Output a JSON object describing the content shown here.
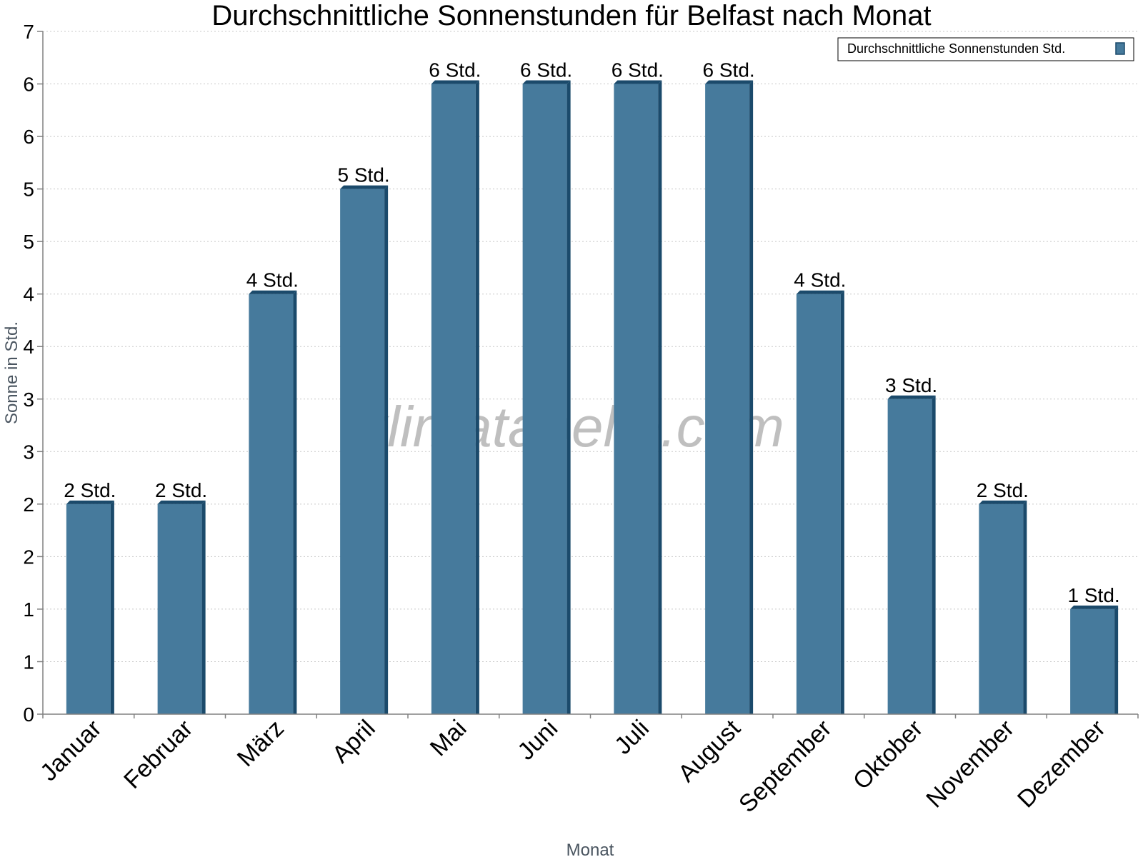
{
  "chart_data": {
    "type": "bar",
    "title": "Durchschnittliche Sonnenstunden für Belfast nach Monat",
    "xlabel": "Monat",
    "ylabel": "Sonne in Std.",
    "categories": [
      "Januar",
      "Februar",
      "März",
      "April",
      "Mai",
      "Juni",
      "Juli",
      "August",
      "September",
      "Oktober",
      "November",
      "Dezember"
    ],
    "series": [
      {
        "name": "Durchschnittliche Sonnenstunden Std.",
        "values": [
          2,
          2,
          4,
          5,
          6,
          6,
          6,
          6,
          4,
          3,
          2,
          1
        ],
        "data_labels": [
          "2 Std.",
          "2 Std.",
          "4 Std.",
          "5 Std.",
          "6 Std.",
          "6 Std.",
          "6 Std.",
          "6 Std.",
          "4 Std.",
          "3 Std.",
          "2 Std.",
          "1 Std."
        ]
      }
    ],
    "y_tick_values": [
      0,
      0.5,
      1,
      1.5,
      2,
      2.5,
      3,
      3.5,
      4,
      4.5,
      5,
      5.5,
      6,
      6.5
    ],
    "y_tick_labels": [
      "0",
      "1",
      "1",
      "2",
      "2",
      "3",
      "3",
      "4",
      "4",
      "5",
      "5",
      "6",
      "6",
      "7"
    ],
    "ylim": [
      0,
      6.5
    ],
    "grid": true,
    "legend_position": "top-right",
    "bar_color": "#467a9c",
    "bar_edge_color": "#1b4a6b",
    "watermark": "klimatabelle.com"
  }
}
